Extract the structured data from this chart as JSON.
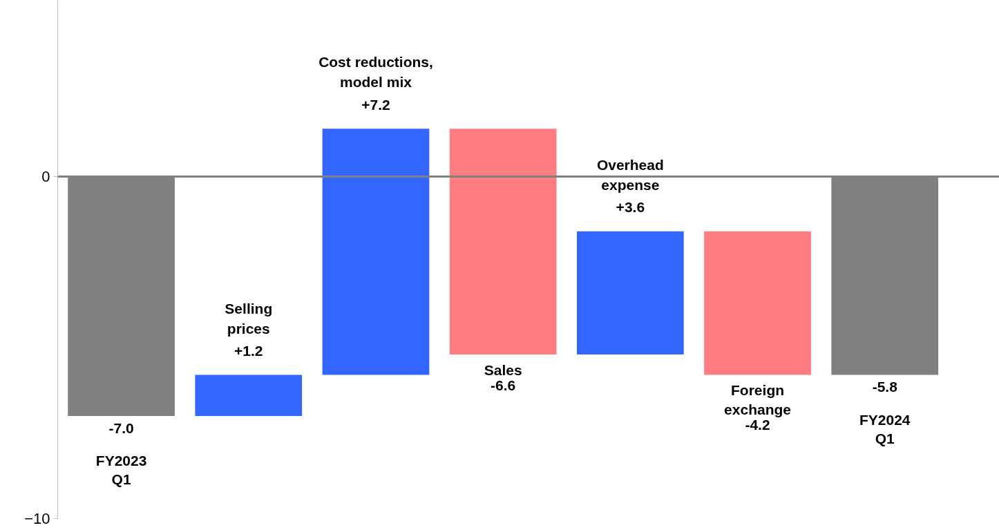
{
  "chart_data": {
    "type": "bar",
    "categories": [
      "FY2023\nQ1",
      "Selling\nprices",
      "Cost reductions,\nmodel mix",
      "Sales",
      "Overhead\nexpense",
      "Foreign\nexchange",
      "FY2024\nQ1"
    ],
    "values": [
      -7.0,
      1.2,
      7.2,
      -6.6,
      3.6,
      -4.2,
      -5.8
    ],
    "base": [
      0,
      -7.0,
      -5.8,
      1.4,
      -5.2,
      -1.6,
      0
    ],
    "colors": [
      "#808080",
      "#3366ff",
      "#3366ff",
      "#ff7c80",
      "#3366ff",
      "#ff7c80",
      "#808080"
    ],
    "value_labels": [
      "-7.0",
      "+1.2",
      "+7.2",
      "-6.6",
      "+3.6",
      "-4.2",
      "-5.8"
    ],
    "ylim": [
      -10,
      5.15
    ],
    "yticks": [
      -10,
      0
    ],
    "ref_lines": [
      {
        "axis": "y",
        "value": 0,
        "color": "#808080"
      }
    ],
    "tick_labels": "y",
    "grid": false
  }
}
